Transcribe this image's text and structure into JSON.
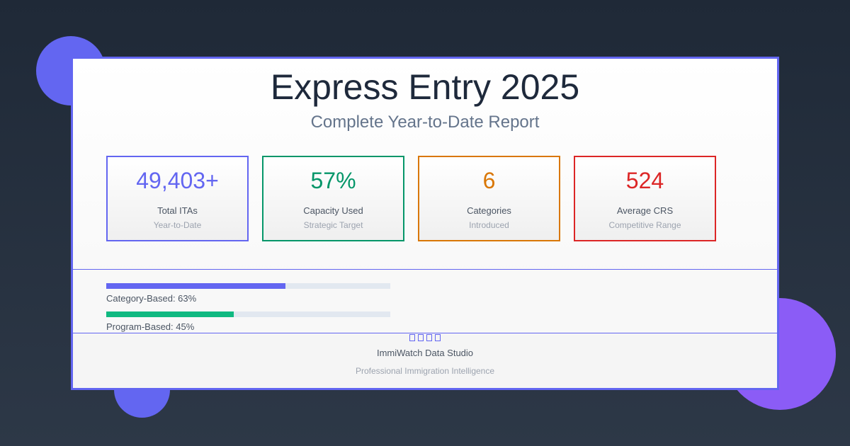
{
  "header": {
    "title": "Express Entry 2025",
    "subtitle": "Complete Year-to-Date Report"
  },
  "stats": [
    {
      "value": "49,403+",
      "label": "Total ITAs",
      "sub": "Year-to-Date",
      "color": "#6366f1"
    },
    {
      "value": "57%",
      "label": "Capacity Used",
      "sub": "Strategic Target",
      "color": "#059669"
    },
    {
      "value": "6",
      "label": "Categories",
      "sub": "Introduced",
      "color": "#d97706"
    },
    {
      "value": "524",
      "label": "Average CRS",
      "sub": "Competitive Range",
      "color": "#dc2626"
    }
  ],
  "progress": [
    {
      "label": "Category-Based: 63%",
      "percent": 63,
      "color": "#6366f1"
    },
    {
      "label": "Program-Based: 45%",
      "percent": 45,
      "color": "#10b981"
    }
  ],
  "footer": {
    "icons": [
      "unknown-glyph-icon",
      "unknown-glyph-icon",
      "unknown-glyph-icon",
      "unknown-glyph-icon"
    ],
    "brand": "ImmiWatch Data Studio",
    "tagline": "Professional Immigration Intelligence"
  }
}
